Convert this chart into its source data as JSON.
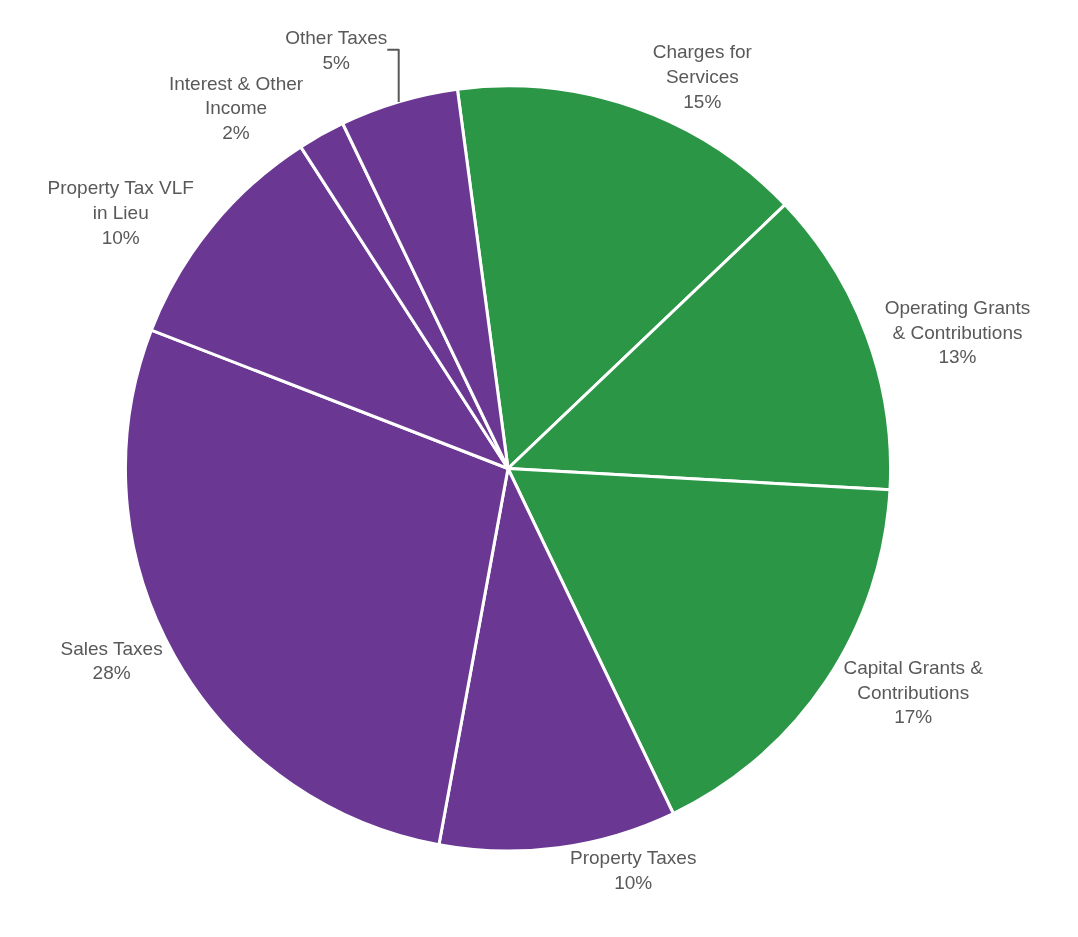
{
  "chart_data": {
    "type": "pie",
    "categories": [
      "Charges for Services",
      "Operating Grants & Contributions",
      "Capital Grants & Contributions",
      "Property Taxes",
      "Sales Taxes",
      "Property Tax VLF in Lieu",
      "Interest & Other Income",
      "Other Taxes"
    ],
    "values": [
      15,
      13,
      17,
      10,
      28,
      10,
      2,
      5
    ],
    "value_labels": [
      "15%",
      "13%",
      "17%",
      "10%",
      "28%",
      "10%",
      "2%",
      "5%"
    ],
    "colors": [
      "#2a9646",
      "#2a9646",
      "#2a9646",
      "#6a3893",
      "#6a3893",
      "#6a3893",
      "#6a3893",
      "#6a3893"
    ],
    "legend": false
  }
}
